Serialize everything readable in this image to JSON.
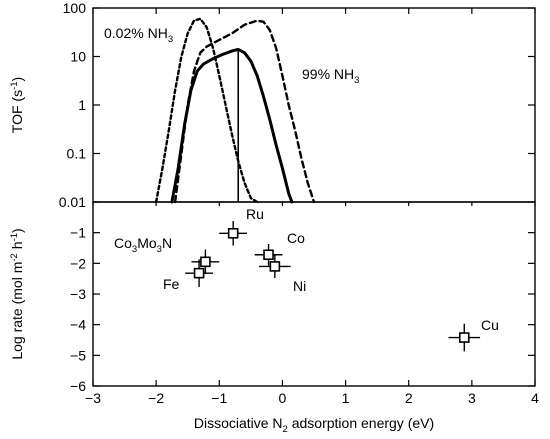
{
  "chart_data": [
    {
      "type": "line",
      "panel": "top",
      "ylabel_main": "TOF (s",
      "ylabel_sup": "-1",
      "ylabel_close": ")",
      "ylim": [
        0.01,
        100
      ],
      "yscale": "log",
      "yticks": [
        "100",
        "10",
        "1",
        "0.1",
        "0.01"
      ],
      "xlim": [
        -3,
        4
      ],
      "series": [
        {
          "name": "0.02% NH3",
          "style": "dotted",
          "x": [
            -2.0,
            -1.9,
            -1.8,
            -1.7,
            -1.6,
            -1.5,
            -1.4,
            -1.3,
            -1.2,
            -1.1,
            -1.0,
            -0.9,
            -0.8,
            -0.7,
            -0.6,
            -0.5,
            -0.4
          ],
          "y": [
            0.01,
            0.05,
            0.3,
            2,
            10,
            30,
            55,
            60,
            40,
            15,
            4,
            1,
            0.25,
            0.07,
            0.025,
            0.012,
            0.01
          ]
        },
        {
          "name": "99% NH3",
          "style": "dashed",
          "x": [
            -1.7,
            -1.6,
            -1.5,
            -1.4,
            -1.3,
            -1.2,
            -1.0,
            -0.8,
            -0.6,
            -0.4,
            -0.3,
            -0.2,
            -0.1,
            0.0,
            0.1,
            0.2,
            0.3,
            0.4,
            0.5
          ],
          "y": [
            0.01,
            0.1,
            1,
            5,
            12,
            16,
            22,
            30,
            45,
            55,
            52,
            35,
            15,
            4,
            1,
            0.3,
            0.08,
            0.025,
            0.01
          ]
        },
        {
          "name": "",
          "style": "solid",
          "x": [
            -1.75,
            -1.65,
            -1.55,
            -1.45,
            -1.35,
            -1.25,
            -1.1,
            -0.95,
            -0.8,
            -0.7,
            -0.6,
            -0.5,
            -0.4,
            -0.3,
            -0.2,
            -0.1,
            0.0,
            0.1,
            0.15
          ],
          "y": [
            0.01,
            0.05,
            0.4,
            2,
            5,
            7,
            9,
            11,
            13,
            14,
            12,
            8,
            4,
            1.5,
            0.5,
            0.15,
            0.05,
            0.015,
            0.01
          ]
        }
      ],
      "vline_x": -0.7,
      "annotations": [
        {
          "text": "0.02% NH",
          "sub": "3"
        },
        {
          "text": "99% NH",
          "sub": "3"
        }
      ]
    },
    {
      "type": "scatter",
      "panel": "bottom",
      "ylabel_main": "Log rate (mol m",
      "ylabel_sup1": "-2",
      "ylabel_mid": " h",
      "ylabel_sup2": "-1",
      "ylabel_close": ")",
      "xlabel_pre": "Dissociative N",
      "xlabel_sub": "2",
      "xlabel_post": " adsorption energy (eV)",
      "xlim": [
        -3,
        4
      ],
      "ylim": [
        -6,
        0
      ],
      "xticks": [
        "-3",
        "-2",
        "-1",
        "0",
        "1",
        "2",
        "3",
        "4"
      ],
      "yticks": [
        "-1",
        "-2",
        "-3",
        "-4",
        "-5",
        "-6"
      ],
      "points": [
        {
          "label": "Ru",
          "x": -0.78,
          "y": -1.02,
          "xerr": 0.22,
          "yerr": 0.4
        },
        {
          "label": "Co",
          "x": -0.22,
          "y": -1.72,
          "xerr": 0.22,
          "yerr": 0.35
        },
        {
          "label": "Ni",
          "x": -0.12,
          "y": -2.1,
          "xerr": 0.25,
          "yerr": 0.38
        },
        {
          "label": "Co3Mo3N",
          "x": -1.22,
          "y": -1.95,
          "xerr": 0.22,
          "yerr": 0.4
        },
        {
          "label": "Fe",
          "x": -1.32,
          "y": -2.32,
          "xerr": 0.22,
          "yerr": 0.45
        },
        {
          "label": "Cu",
          "x": 2.88,
          "y": -4.42,
          "xerr": 0.25,
          "yerr": 0.45
        }
      ]
    }
  ]
}
